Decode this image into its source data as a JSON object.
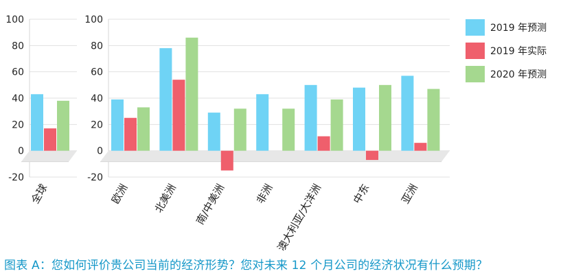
{
  "chart_data": {
    "type": "bar",
    "title": "",
    "xlabel": "",
    "ylabel": "",
    "ylim": [
      -20,
      100
    ],
    "yticks": [
      -20,
      0,
      20,
      40,
      60,
      80,
      100
    ],
    "legend_position": "right",
    "grid": true,
    "series": [
      {
        "name": "2019 年预测",
        "color": "#6fd3f5"
      },
      {
        "name": "2019 年实际",
        "color": "#ef5f6c"
      },
      {
        "name": "2020 年预测",
        "color": "#a5d88f"
      }
    ],
    "panels": [
      {
        "categories": [
          "全球"
        ],
        "values": [
          [
            43
          ],
          [
            17
          ],
          [
            38
          ]
        ]
      },
      {
        "categories": [
          "欧洲",
          "北美洲",
          "南/中美洲",
          "非洲",
          "澳大利亚/大洋洲",
          "中东",
          "亚洲"
        ],
        "values": [
          [
            39,
            78,
            29,
            43,
            50,
            48,
            57
          ],
          [
            25,
            54,
            -15,
            0,
            11,
            -7,
            6
          ],
          [
            33,
            86,
            32,
            32,
            39,
            50,
            47
          ]
        ]
      }
    ]
  },
  "caption": "图表 A：您如何评价贵公司当前的经济形势？您对未来 12 个月公司的经济状况有什么预期？"
}
